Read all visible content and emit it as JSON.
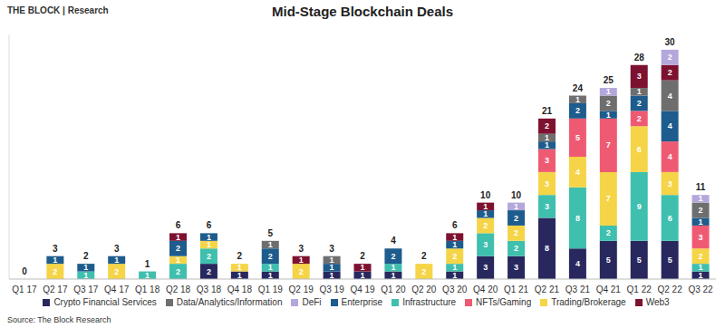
{
  "chart_data": {
    "type": "bar",
    "title": "Mid-Stage Blockchain Deals",
    "annotations": [
      "THE BLOCK | Research",
      "Source: The Block Research"
    ],
    "categories": [
      "Q1 17",
      "Q2 17",
      "Q3 17",
      "Q4 17",
      "Q1 18",
      "Q2 18",
      "Q3 18",
      "Q4 18",
      "Q1 19",
      "Q2 19",
      "Q3 19",
      "Q4 19",
      "Q1 20",
      "Q2 20",
      "Q3 20",
      "Q4 20",
      "Q1 21",
      "Q2 21",
      "Q3 21",
      "Q4 21",
      "Q1 22",
      "Q2 22",
      "Q3 22"
    ],
    "series": [
      {
        "name": "Crypto Financial Services",
        "color": "#28285e",
        "values": [
          0,
          0,
          0,
          0,
          0,
          0,
          2,
          1,
          1,
          0,
          1,
          1,
          1,
          0,
          1,
          3,
          3,
          8,
          4,
          5,
          5,
          5,
          1
        ]
      },
      {
        "name": "Infrastructure",
        "color": "#3fbfae",
        "values": [
          0,
          0,
          1,
          0,
          1,
          2,
          2,
          0,
          1,
          0,
          0,
          0,
          1,
          0,
          1,
          3,
          2,
          3,
          8,
          2,
          9,
          6,
          1
        ]
      },
      {
        "name": "Trading/Brokerage",
        "color": "#f5d547",
        "values": [
          0,
          2,
          0,
          2,
          0,
          1,
          1,
          1,
          0,
          2,
          0,
          0,
          0,
          2,
          2,
          2,
          2,
          3,
          4,
          7,
          6,
          3,
          2
        ]
      },
      {
        "name": "NFTs/Gaming",
        "color": "#ef5a73",
        "values": [
          0,
          0,
          0,
          0,
          0,
          0,
          0,
          0,
          0,
          0,
          0,
          0,
          0,
          0,
          0,
          0,
          0,
          3,
          5,
          7,
          2,
          4,
          3
        ]
      },
      {
        "name": "Enterprise",
        "color": "#1d5c8c",
        "values": [
          0,
          1,
          1,
          1,
          0,
          2,
          1,
          0,
          2,
          0,
          1,
          0,
          2,
          0,
          1,
          1,
          2,
          1,
          2,
          1,
          2,
          4,
          1
        ]
      },
      {
        "name": "Data/Analytics/Information",
        "color": "#6e6e6e",
        "values": [
          0,
          0,
          0,
          0,
          0,
          0,
          0,
          0,
          1,
          0,
          1,
          0,
          0,
          0,
          0,
          0,
          0,
          1,
          1,
          2,
          1,
          4,
          2
        ]
      },
      {
        "name": "Web3",
        "color": "#7d1230",
        "values": [
          0,
          0,
          0,
          0,
          0,
          1,
          0,
          0,
          0,
          1,
          0,
          1,
          0,
          0,
          1,
          1,
          0,
          2,
          0,
          0,
          3,
          2,
          0
        ]
      },
      {
        "name": "DeFi",
        "color": "#b4a7db",
        "values": [
          0,
          0,
          0,
          0,
          0,
          0,
          0,
          0,
          0,
          0,
          0,
          0,
          0,
          0,
          0,
          0,
          1,
          0,
          0,
          1,
          0,
          2,
          1
        ]
      }
    ],
    "totals": [
      0,
      3,
      2,
      3,
      1,
      6,
      6,
      2,
      5,
      3,
      3,
      2,
      4,
      2,
      6,
      10,
      10,
      21,
      24,
      25,
      28,
      30,
      11
    ],
    "ylim": [
      0,
      32
    ],
    "stacked": true,
    "data_labels": true,
    "tick_labels": "x",
    "legend": "bottom",
    "grid": false
  }
}
